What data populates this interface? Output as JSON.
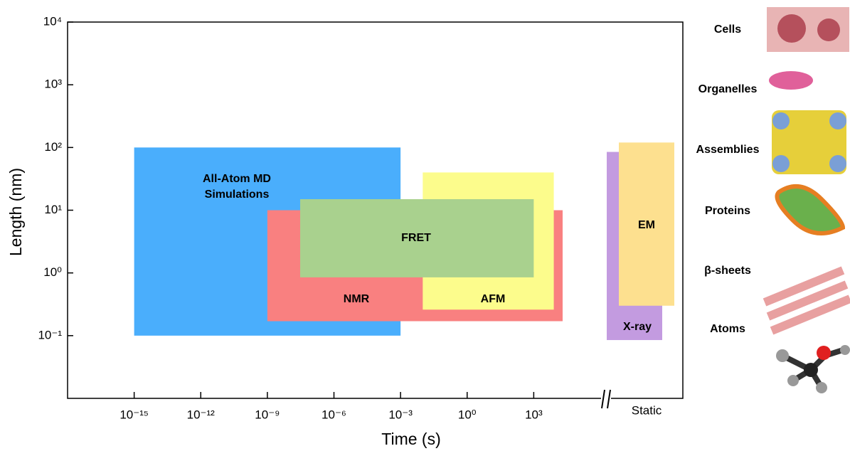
{
  "chart_data": {
    "type": "range",
    "x_label": "Time (s)",
    "y_label": "Length (nm)",
    "xlog": true,
    "ylog": true,
    "xlim": [
      1e-18,
      1000000.0
    ],
    "ylim": [
      0.01,
      10000
    ],
    "xticks": [
      {
        "value": 1e-15,
        "label": "10⁻¹⁵"
      },
      {
        "value": 1e-12,
        "label": "10⁻¹²"
      },
      {
        "value": 1e-09,
        "label": "10⁻⁹"
      },
      {
        "value": 1e-06,
        "label": "10⁻⁶"
      },
      {
        "value": 0.001,
        "label": "10⁻³"
      },
      {
        "value": 1,
        "label": "10⁰"
      },
      {
        "value": 1000,
        "label": "10³"
      }
    ],
    "yticks": [
      {
        "value": 0.1,
        "label": "10⁻¹"
      },
      {
        "value": 1,
        "label": "10⁰"
      },
      {
        "value": 10,
        "label": "10¹"
      },
      {
        "value": 100,
        "label": "10²"
      },
      {
        "value": 1000,
        "label": "10³"
      },
      {
        "value": 10000,
        "label": "10⁴"
      }
    ],
    "series": [
      {
        "name": [
          "All-Atom  MD",
          "Simulations"
        ],
        "color": "#4aaefc",
        "x": [
          1e-15,
          0.001
        ],
        "values": [
          0.1,
          100
        ]
      },
      {
        "name": [
          "NMR"
        ],
        "color": "#f98080",
        "x": [
          1e-09,
          20000
        ],
        "values": [
          0.17,
          10
        ]
      },
      {
        "name": [
          "AFM"
        ],
        "color": "#fcfc8c",
        "x": [
          0.01,
          8000
        ],
        "values": [
          0.26,
          40
        ]
      },
      {
        "name": [
          "FRET"
        ],
        "color": "#a9d18e",
        "x": [
          3e-08,
          1000
        ],
        "values": [
          0.85,
          15
        ]
      }
    ],
    "static_label": "Static",
    "static_series": [
      {
        "name": "X-ray",
        "color": "#c39be0",
        "values": [
          0.085,
          85
        ]
      },
      {
        "name": "EM",
        "color": "#fde08f",
        "values": [
          0.3,
          120
        ]
      }
    ],
    "scale_examples": [
      "Cells",
      "Organelles",
      "Assemblies",
      "Proteins",
      "β-sheets",
      "Atoms"
    ]
  }
}
